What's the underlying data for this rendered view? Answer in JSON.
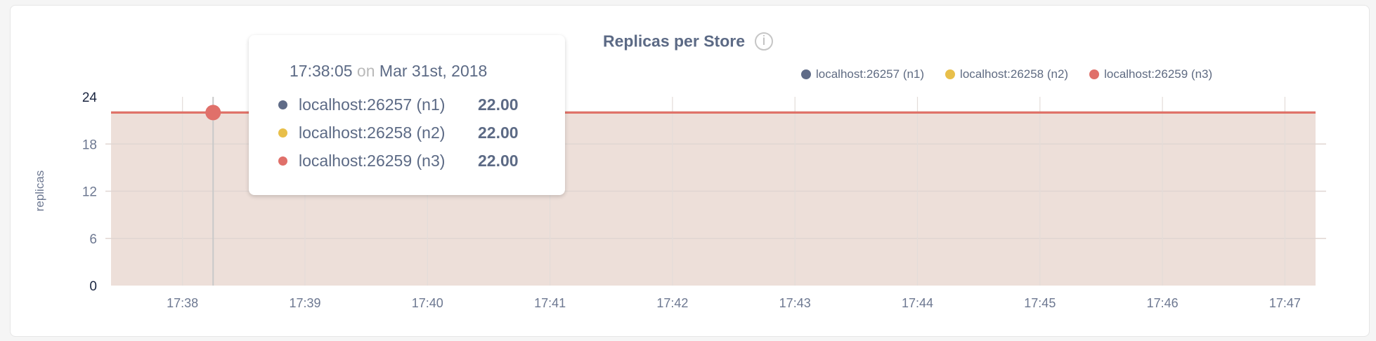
{
  "chart_data": {
    "type": "area",
    "title": "Replicas per Store",
    "ylabel": "replicas",
    "xlabel": "",
    "ylim": [
      0,
      24
    ],
    "yticks": [
      "0",
      "6",
      "12",
      "18",
      "24"
    ],
    "xlim": [
      "17:37:25",
      "17:47:15"
    ],
    "xticks": [
      "17:38",
      "17:39",
      "17:40",
      "17:41",
      "17:42",
      "17:43",
      "17:44",
      "17:45",
      "17:46",
      "17:47"
    ],
    "grid": true,
    "legend_position": "top-right",
    "series": [
      {
        "name": "localhost:26257 (n1)",
        "color": "#5f6b87",
        "x": [
          "17:37:25",
          "17:47:15"
        ],
        "values": [
          22,
          22
        ]
      },
      {
        "name": "localhost:26258 (n2)",
        "color": "#e8bf4a",
        "x": [
          "17:37:25",
          "17:47:15"
        ],
        "values": [
          22,
          22
        ]
      },
      {
        "name": "localhost:26259 (n3)",
        "color": "#e0706a",
        "x": [
          "17:37:25",
          "17:47:15"
        ],
        "values": [
          22,
          22
        ]
      }
    ],
    "fill_color": "#eddfd9"
  },
  "info_icon": "info-circle-icon",
  "tooltip": {
    "time": "17:38:05",
    "on": "on",
    "date": "Mar 31st, 2018",
    "hover_x": "17:38:15",
    "rows": [
      {
        "name": "localhost:26257 (n1)",
        "value": "22.00",
        "color": "#5f6b87"
      },
      {
        "name": "localhost:26258 (n2)",
        "value": "22.00",
        "color": "#e8bf4a"
      },
      {
        "name": "localhost:26259 (n3)",
        "value": "22.00",
        "color": "#e0706a"
      }
    ]
  }
}
